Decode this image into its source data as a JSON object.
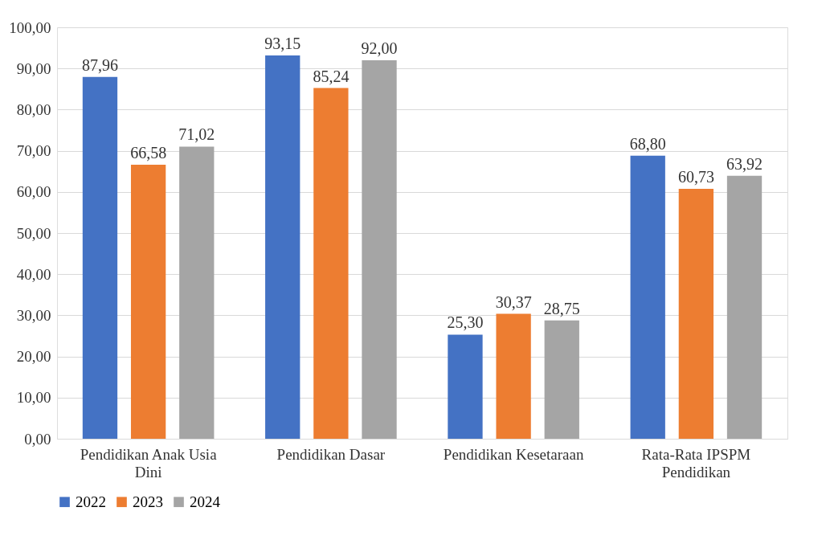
{
  "chart_data": {
    "type": "bar",
    "categories": [
      "Pendidikan Anak Usia Dini",
      "Pendidikan Dasar",
      "Pendidikan Kesetaraan",
      "Rata-Rata IPSPM Pendidikan"
    ],
    "series": [
      {
        "name": "2022",
        "color": "#4472c4",
        "values": [
          87.96,
          93.15,
          25.3,
          68.8
        ],
        "value_labels": [
          "87,96",
          "93,15",
          "25,30",
          "68,80"
        ]
      },
      {
        "name": "2023",
        "color": "#ed7d31",
        "values": [
          66.58,
          85.24,
          30.37,
          60.73
        ],
        "value_labels": [
          "66,58",
          "85,24",
          "30,37",
          "60,73"
        ]
      },
      {
        "name": "2024",
        "color": "#a5a5a5",
        "values": [
          71.02,
          92.0,
          28.75,
          63.92
        ],
        "value_labels": [
          "71,02",
          "92,00",
          "28,75",
          "63,92"
        ]
      }
    ],
    "ylim": [
      0,
      100
    ],
    "yticks": [
      {
        "value": 0,
        "label": "0,00"
      },
      {
        "value": 10,
        "label": "10,00"
      },
      {
        "value": 20,
        "label": "20,00"
      },
      {
        "value": 30,
        "label": "30,00"
      },
      {
        "value": 40,
        "label": "40,00"
      },
      {
        "value": 50,
        "label": "50,00"
      },
      {
        "value": 60,
        "label": "60,00"
      },
      {
        "value": 70,
        "label": "70,00"
      },
      {
        "value": 80,
        "label": "80,00"
      },
      {
        "value": 90,
        "label": "90,00"
      },
      {
        "value": 100,
        "label": "100,00"
      }
    ],
    "grid": "y",
    "legend": "bottom"
  }
}
